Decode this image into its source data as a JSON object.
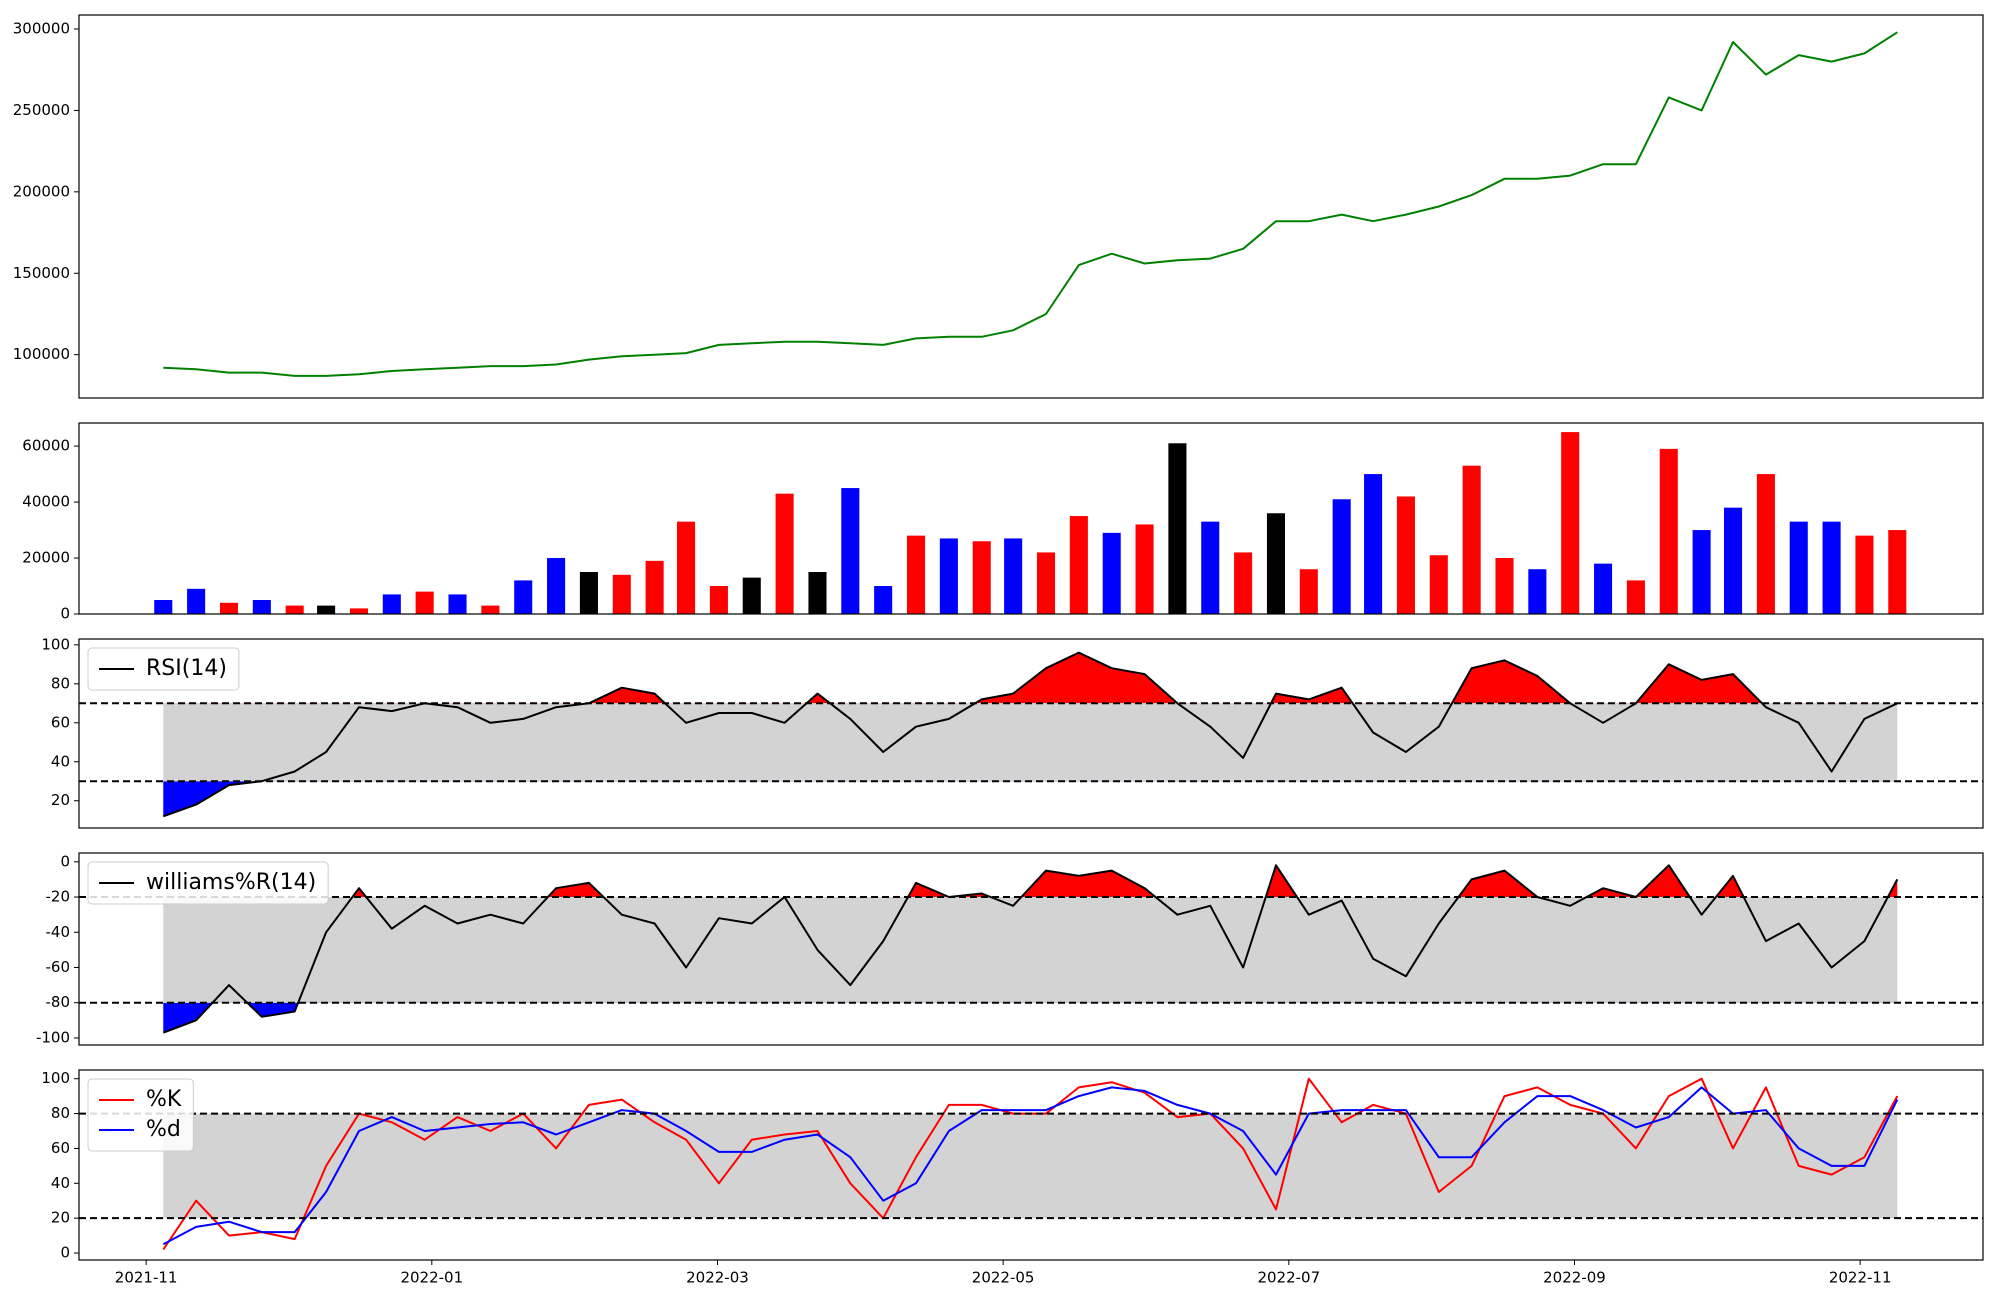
{
  "chart_data": [
    {
      "type": "line",
      "x": [
        0.12,
        0.35,
        0.58,
        0.81,
        1.04,
        1.26,
        1.49,
        1.72,
        1.95,
        2.18,
        2.41,
        2.64,
        2.87,
        3.1,
        3.33,
        3.56,
        3.78,
        4.01,
        4.24,
        4.47,
        4.7,
        4.93,
        5.16,
        5.39,
        5.62,
        5.85,
        6.07,
        6.3,
        6.53,
        6.76,
        6.99,
        7.22,
        7.45,
        7.68,
        7.91,
        8.14,
        8.37,
        8.59,
        8.82,
        9.05,
        9.28,
        9.51,
        9.74,
        9.97,
        10.2,
        10.43,
        10.66,
        10.89,
        11.11,
        11.34,
        11.57,
        11.8,
        12.03,
        12.26
      ],
      "series": [
        {
          "color": "#008000",
          "values": [
            92000,
            91000,
            89000,
            89000,
            87000,
            87000,
            88000,
            90000,
            91000,
            92000,
            93000,
            93000,
            94000,
            97000,
            99000,
            100000,
            101000,
            106000,
            107000,
            108000,
            108000,
            107000,
            106000,
            110000,
            111000,
            111000,
            115000,
            125000,
            155000,
            162000,
            156000,
            158000,
            159000,
            165000,
            182000,
            182000,
            186000,
            182000,
            186000,
            191000,
            198000,
            208000,
            208000,
            210000,
            217000,
            217000,
            258000,
            250000,
            292000,
            272000,
            284000,
            280000,
            285000,
            298000
          ]
        }
      ],
      "xlim": [
        -0.47,
        12.86
      ],
      "ylim": [
        73400,
        308600
      ],
      "yticks": [
        100000,
        150000,
        200000,
        250000,
        300000
      ]
    },
    {
      "type": "bar",
      "x": [
        0.12,
        0.35,
        0.58,
        0.81,
        1.04,
        1.26,
        1.49,
        1.72,
        1.95,
        2.18,
        2.41,
        2.64,
        2.87,
        3.1,
        3.33,
        3.56,
        3.78,
        4.01,
        4.24,
        4.47,
        4.7,
        4.93,
        5.16,
        5.39,
        5.62,
        5.85,
        6.07,
        6.3,
        6.53,
        6.76,
        6.99,
        7.22,
        7.45,
        7.68,
        7.91,
        8.14,
        8.37,
        8.59,
        8.82,
        9.05,
        9.28,
        9.51,
        9.74,
        9.97,
        10.2,
        10.43,
        10.66,
        10.89,
        11.11,
        11.34,
        11.57,
        11.8,
        12.03,
        12.26
      ],
      "values": [
        5000,
        9000,
        4000,
        5000,
        3000,
        3000,
        2000,
        7000,
        8000,
        7000,
        3000,
        12000,
        20000,
        15000,
        14000,
        19000,
        33000,
        10000,
        13000,
        43000,
        15000,
        45000,
        10000,
        28000,
        27000,
        26000,
        27000,
        22000,
        35000,
        29000,
        32000,
        61000,
        33000,
        22000,
        36000,
        16000,
        41000,
        50000,
        42000,
        21000,
        53000,
        20000,
        16000,
        65000,
        18000,
        12000,
        59000,
        30000,
        38000,
        50000,
        33000,
        33000,
        28000,
        30000
      ],
      "colors": [
        "#0000ff",
        "#0000ff",
        "#ff0000",
        "#0000ff",
        "#ff0000",
        "#000000",
        "#ff0000",
        "#0000ff",
        "#ff0000",
        "#0000ff",
        "#ff0000",
        "#0000ff",
        "#0000ff",
        "#000000",
        "#ff0000",
        "#ff0000",
        "#ff0000",
        "#ff0000",
        "#000000",
        "#ff0000",
        "#000000",
        "#0000ff",
        "#0000ff",
        "#ff0000",
        "#0000ff",
        "#ff0000",
        "#0000ff",
        "#ff0000",
        "#ff0000",
        "#0000ff",
        "#ff0000",
        "#000000",
        "#0000ff",
        "#ff0000",
        "#000000",
        "#ff0000",
        "#0000ff",
        "#0000ff",
        "#ff0000",
        "#ff0000",
        "#ff0000",
        "#ff0000",
        "#0000ff",
        "#ff0000",
        "#0000ff",
        "#ff0000",
        "#ff0000",
        "#0000ff",
        "#0000ff",
        "#ff0000",
        "#0000ff",
        "#0000ff",
        "#ff0000",
        "#ff0000"
      ],
      "xlim": [
        -0.47,
        12.86
      ],
      "ylim": [
        0,
        68250
      ],
      "yticks": [
        0,
        20000,
        40000,
        60000
      ]
    },
    {
      "type": "line",
      "x": [
        0.12,
        0.35,
        0.58,
        0.81,
        1.04,
        1.26,
        1.49,
        1.72,
        1.95,
        2.18,
        2.41,
        2.64,
        2.87,
        3.1,
        3.33,
        3.56,
        3.78,
        4.01,
        4.24,
        4.47,
        4.7,
        4.93,
        5.16,
        5.39,
        5.62,
        5.85,
        6.07,
        6.3,
        6.53,
        6.76,
        6.99,
        7.22,
        7.45,
        7.68,
        7.91,
        8.14,
        8.37,
        8.59,
        8.82,
        9.05,
        9.28,
        9.51,
        9.74,
        9.97,
        10.2,
        10.43,
        10.66,
        10.89,
        11.11,
        11.34,
        11.57,
        11.8,
        12.03,
        12.26
      ],
      "series": [
        {
          "name": "RSI(14)",
          "color": "#000000",
          "values": [
            12,
            18,
            28,
            30,
            35,
            45,
            68,
            66,
            70,
            68,
            60,
            62,
            68,
            70,
            78,
            75,
            60,
            65,
            65,
            60,
            75,
            62,
            45,
            58,
            62,
            72,
            75,
            88,
            96,
            88,
            85,
            70,
            58,
            42,
            75,
            72,
            78,
            55,
            45,
            58,
            88,
            92,
            84,
            70,
            60,
            70,
            90,
            82,
            85,
            68,
            60,
            35,
            62,
            70
          ]
        }
      ],
      "xlim": [
        -0.47,
        12.86
      ],
      "ylim": [
        6,
        103
      ],
      "yticks": [
        20,
        40,
        60,
        80,
        100
      ],
      "hlines": [
        70,
        30
      ],
      "band_color": "#d3d3d3",
      "fill_above": "#ff0000",
      "fill_below": "#0000ff",
      "legend": "upper left"
    },
    {
      "type": "line",
      "x": [
        0.12,
        0.35,
        0.58,
        0.81,
        1.04,
        1.26,
        1.49,
        1.72,
        1.95,
        2.18,
        2.41,
        2.64,
        2.87,
        3.1,
        3.33,
        3.56,
        3.78,
        4.01,
        4.24,
        4.47,
        4.7,
        4.93,
        5.16,
        5.39,
        5.62,
        5.85,
        6.07,
        6.3,
        6.53,
        6.76,
        6.99,
        7.22,
        7.45,
        7.68,
        7.91,
        8.14,
        8.37,
        8.59,
        8.82,
        9.05,
        9.28,
        9.51,
        9.74,
        9.97,
        10.2,
        10.43,
        10.66,
        10.89,
        11.11,
        11.34,
        11.57,
        11.8,
        12.03,
        12.26
      ],
      "series": [
        {
          "name": "williams%R(14)",
          "color": "#000000",
          "values": [
            -97,
            -90,
            -70,
            -88,
            -85,
            -40,
            -15,
            -38,
            -25,
            -35,
            -30,
            -35,
            -15,
            -12,
            -30,
            -35,
            -60,
            -32,
            -35,
            -20,
            -50,
            -70,
            -45,
            -12,
            -20,
            -18,
            -25,
            -5,
            -8,
            -5,
            -15,
            -30,
            -25,
            -60,
            -2,
            -30,
            -22,
            -55,
            -65,
            -35,
            -10,
            -5,
            -20,
            -25,
            -15,
            -20,
            -2,
            -30,
            -8,
            -45,
            -35,
            -60,
            -45,
            -10
          ]
        }
      ],
      "xlim": [
        -0.47,
        12.86
      ],
      "ylim": [
        -104,
        5
      ],
      "yticks": [
        -100,
        -80,
        -60,
        -40,
        -20,
        0
      ],
      "hlines": [
        -20,
        -80
      ],
      "band_color": "#d3d3d3",
      "fill_above": "#ff0000",
      "fill_below": "#0000ff",
      "legend": "upper left"
    },
    {
      "type": "line",
      "x": [
        0.12,
        0.35,
        0.58,
        0.81,
        1.04,
        1.26,
        1.49,
        1.72,
        1.95,
        2.18,
        2.41,
        2.64,
        2.87,
        3.1,
        3.33,
        3.56,
        3.78,
        4.01,
        4.24,
        4.47,
        4.7,
        4.93,
        5.16,
        5.39,
        5.62,
        5.85,
        6.07,
        6.3,
        6.53,
        6.76,
        6.99,
        7.22,
        7.45,
        7.68,
        7.91,
        8.14,
        8.37,
        8.59,
        8.82,
        9.05,
        9.28,
        9.51,
        9.74,
        9.97,
        10.2,
        10.43,
        10.66,
        10.89,
        11.11,
        11.34,
        11.57,
        11.8,
        12.03,
        12.26
      ],
      "series": [
        {
          "name": "%K",
          "color": "#ff0000",
          "values": [
            2,
            30,
            10,
            12,
            8,
            50,
            80,
            75,
            65,
            78,
            70,
            80,
            60,
            85,
            88,
            75,
            65,
            40,
            65,
            68,
            70,
            40,
            20,
            55,
            85,
            85,
            80,
            80,
            95,
            98,
            92,
            78,
            80,
            60,
            25,
            100,
            75,
            85,
            80,
            35,
            50,
            90,
            95,
            85,
            80,
            60,
            90,
            100,
            60,
            95,
            50,
            45,
            55,
            90
          ]
        },
        {
          "name": "%d",
          "color": "#0000ff",
          "values": [
            5,
            15,
            18,
            12,
            12,
            35,
            70,
            78,
            70,
            72,
            74,
            75,
            68,
            75,
            82,
            80,
            70,
            58,
            58,
            65,
            68,
            55,
            30,
            40,
            70,
            82,
            82,
            82,
            90,
            95,
            93,
            85,
            80,
            70,
            45,
            80,
            82,
            82,
            82,
            55,
            55,
            75,
            90,
            90,
            82,
            72,
            78,
            95,
            80,
            82,
            60,
            50,
            50,
            88
          ]
        }
      ],
      "xlim": [
        -0.47,
        12.86
      ],
      "ylim": [
        -4,
        105
      ],
      "yticks": [
        0,
        20,
        40,
        60,
        80,
        100
      ],
      "hlines": [
        80,
        20
      ],
      "band_color": "#d3d3d3",
      "legend": "upper left",
      "xticks": [
        {
          "value": 0,
          "label": "2021-11"
        },
        {
          "value": 2,
          "label": "2022-01"
        },
        {
          "value": 4,
          "label": "2022-03"
        },
        {
          "value": 6,
          "label": "2022-05"
        },
        {
          "value": 8,
          "label": "2022-07"
        },
        {
          "value": 10,
          "label": "2022-09"
        },
        {
          "value": 12,
          "label": "2022-11"
        }
      ]
    }
  ]
}
